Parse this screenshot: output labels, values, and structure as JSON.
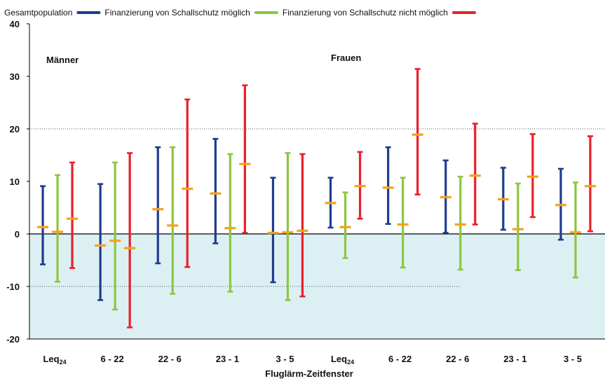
{
  "chart_data": {
    "type": "error-bar",
    "title": "",
    "xlabel": "Fluglärm-Zeitfenster",
    "ylabel": "",
    "ylim": [
      -20,
      40
    ],
    "yticks": [
      -20,
      -10,
      0,
      10,
      20,
      30,
      40
    ],
    "grid": "dotted lines at 20 and -10",
    "legend_position": "top",
    "groups": [
      "Männer",
      "Frauen"
    ],
    "categories": [
      {
        "label": "Leq",
        "sub": "24"
      },
      {
        "label": "6 - 22",
        "sub": ""
      },
      {
        "label": "22 - 6",
        "sub": ""
      },
      {
        "label": "23 - 1",
        "sub": ""
      },
      {
        "label": "3 - 5",
        "sub": ""
      },
      {
        "label": "Leq",
        "sub": "24"
      },
      {
        "label": "6 - 22",
        "sub": ""
      },
      {
        "label": "22 - 6",
        "sub": ""
      },
      {
        "label": "23 - 1",
        "sub": ""
      },
      {
        "label": "3 - 5",
        "sub": ""
      }
    ],
    "series": [
      {
        "name": "Gesamtpopulation",
        "color": "#1f3c8c",
        "estimate": [
          1.3,
          -2.2,
          4.7,
          7.7,
          0.2,
          5.9,
          8.8,
          7.0,
          6.6,
          5.5
        ],
        "lower": [
          -5.8,
          -12.6,
          -5.6,
          -1.8,
          -9.2,
          1.2,
          1.9,
          0.2,
          0.8,
          -1.1
        ],
        "upper": [
          9.1,
          9.5,
          16.5,
          18.1,
          10.7,
          10.7,
          16.5,
          14.0,
          12.6,
          12.4
        ]
      },
      {
        "name": "Finanzierung von Schallschutz möglich",
        "color": "#8cc63f",
        "estimate": [
          0.4,
          -1.3,
          1.6,
          1.1,
          0.3,
          1.3,
          1.8,
          1.8,
          0.9,
          0.3
        ],
        "lower": [
          -9.1,
          -14.4,
          -11.4,
          -11.0,
          -12.6,
          -4.6,
          -6.4,
          -6.8,
          -6.9,
          -8.3
        ],
        "upper": [
          11.2,
          13.6,
          16.5,
          15.2,
          15.4,
          7.9,
          10.7,
          10.9,
          9.6,
          9.8
        ]
      },
      {
        "name": "Finanzierung von Schallschutz nicht möglich",
        "color": "#e8202a",
        "estimate": [
          2.9,
          -2.7,
          8.6,
          13.3,
          0.6,
          9.1,
          18.9,
          11.1,
          10.9,
          9.1
        ],
        "lower": [
          -6.5,
          -17.8,
          -6.3,
          0.2,
          -11.9,
          2.9,
          7.5,
          1.8,
          3.2,
          0.5
        ],
        "upper": [
          13.6,
          15.4,
          25.6,
          28.3,
          15.2,
          15.6,
          31.4,
          21.0,
          19.0,
          18.6
        ]
      }
    ]
  }
}
